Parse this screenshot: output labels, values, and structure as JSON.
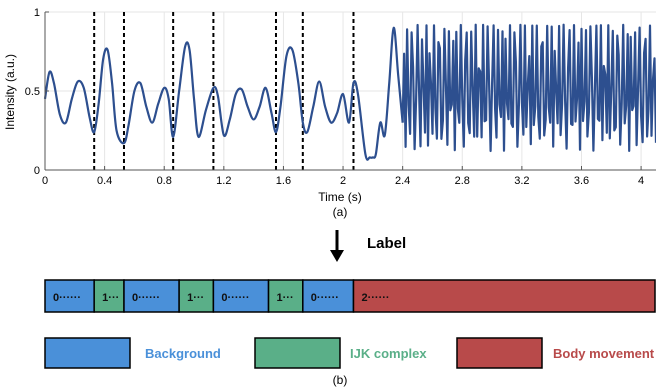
{
  "chart_data": {
    "type": "line",
    "xlabel": "Time (s)",
    "ylabel": "Intensity (a.u.)",
    "xlim": [
      0,
      4.1
    ],
    "ylim": [
      0,
      1
    ],
    "xticks": [
      0,
      0.4,
      0.8,
      1.2,
      1.6,
      2,
      2.4,
      2.8,
      3.2,
      3.6,
      4
    ],
    "xtick_labels": [
      "0",
      "0.4",
      "0.8",
      "1.2",
      "1.6",
      "2",
      "2.4",
      "2.8",
      "3.2",
      "3.6",
      "4"
    ],
    "yticks": [
      0,
      0.5,
      1
    ],
    "ytick_labels": [
      "0",
      "0.5",
      "1"
    ],
    "grid": true,
    "series": [
      {
        "color": "#2d4f8f",
        "x": [
          0.0,
          0.03,
          0.06,
          0.1,
          0.14,
          0.18,
          0.22,
          0.26,
          0.3,
          0.33,
          0.36,
          0.39,
          0.42,
          0.45,
          0.48,
          0.53,
          0.56,
          0.6,
          0.64,
          0.68,
          0.72,
          0.76,
          0.8,
          0.83,
          0.86,
          0.9,
          0.94,
          0.97,
          1.0,
          1.03,
          1.08,
          1.13,
          1.16,
          1.2,
          1.24,
          1.28,
          1.32,
          1.36,
          1.4,
          1.44,
          1.48,
          1.52,
          1.55,
          1.58,
          1.62,
          1.66,
          1.7,
          1.73,
          1.76,
          1.8,
          1.84,
          1.88,
          1.92,
          1.96,
          2.0,
          2.04,
          2.07,
          2.1,
          2.15,
          2.18,
          2.2,
          2.22,
          2.25,
          2.28,
          2.31,
          2.34,
          2.37,
          2.4
        ],
        "y": [
          0.45,
          0.62,
          0.55,
          0.35,
          0.3,
          0.45,
          0.56,
          0.52,
          0.33,
          0.24,
          0.42,
          0.7,
          0.76,
          0.55,
          0.25,
          0.17,
          0.28,
          0.5,
          0.55,
          0.4,
          0.3,
          0.42,
          0.52,
          0.45,
          0.21,
          0.5,
          0.78,
          0.76,
          0.45,
          0.21,
          0.38,
          0.52,
          0.47,
          0.22,
          0.32,
          0.48,
          0.51,
          0.4,
          0.32,
          0.4,
          0.52,
          0.36,
          0.24,
          0.4,
          0.72,
          0.76,
          0.55,
          0.3,
          0.24,
          0.4,
          0.56,
          0.4,
          0.3,
          0.36,
          0.48,
          0.3,
          0.55,
          0.48,
          0.1,
          0.08,
          0.08,
          0.1,
          0.3,
          0.22,
          0.55,
          0.9,
          0.6,
          0.3
        ]
      }
    ],
    "dashed_lines_x": [
      0.33,
      0.53,
      0.86,
      1.13,
      1.55,
      1.73,
      2.07
    ],
    "irregular_region": {
      "x_start": 2.4,
      "x_end": 4.1,
      "y_min": 0.12,
      "y_max": 0.92
    }
  },
  "caption_a": "(a)",
  "caption_b": "(b)",
  "arrow_label": "Label",
  "segments": [
    {
      "label": "0······",
      "color": "#4a90d9",
      "from": 0.0,
      "to": 0.33
    },
    {
      "label": "1···",
      "color": "#5aaf88",
      "from": 0.33,
      "to": 0.53
    },
    {
      "label": "0······",
      "color": "#4a90d9",
      "from": 0.53,
      "to": 0.9
    },
    {
      "label": "1···",
      "color": "#5aaf88",
      "from": 0.9,
      "to": 1.13
    },
    {
      "label": "0······",
      "color": "#4a90d9",
      "from": 1.13,
      "to": 1.5
    },
    {
      "label": "1···",
      "color": "#5aaf88",
      "from": 1.5,
      "to": 1.73
    },
    {
      "label": "0······",
      "color": "#4a90d9",
      "from": 1.73,
      "to": 2.07
    },
    {
      "label": "2······",
      "color": "#b84a4a",
      "from": 2.07,
      "to": 4.1
    }
  ],
  "legend": [
    {
      "label": "Background",
      "color": "#4a90d9",
      "text_color": "#4a90d9"
    },
    {
      "label": "IJK complex",
      "color": "#5aaf88",
      "text_color": "#5aaf88"
    },
    {
      "label": "Body movement",
      "color": "#b84a4a",
      "text_color": "#b84a4a"
    }
  ]
}
